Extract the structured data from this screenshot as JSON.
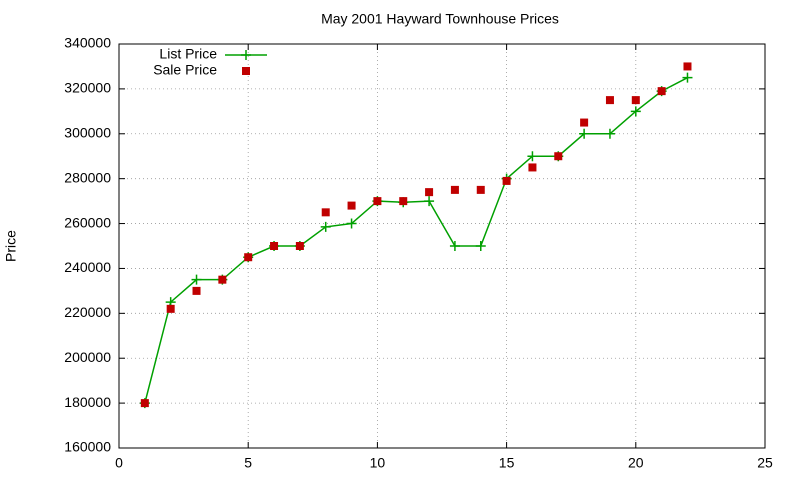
{
  "chart_data": {
    "type": "line",
    "title": "May 2001 Hayward Townhouse Prices",
    "y_label": "Price",
    "x": [
      1,
      2,
      3,
      4,
      5,
      6,
      7,
      8,
      9,
      10,
      11,
      12,
      13,
      14,
      15,
      16,
      17,
      18,
      19,
      20,
      21,
      22
    ],
    "series": [
      {
        "name": "List Price",
        "type": "line",
        "color": "#00a000",
        "values": [
          180000,
          225000,
          235000,
          235000,
          245000,
          250000,
          250000,
          258500,
          260000,
          270000,
          269500,
          270000,
          250000,
          250000,
          280000,
          290000,
          290000,
          300000,
          300000,
          310000,
          319000,
          325000
        ]
      },
      {
        "name": "Sale Price",
        "type": "scatter",
        "color": "#c00000",
        "values": [
          180000,
          222000,
          230000,
          235000,
          245000,
          250000,
          250000,
          265000,
          268000,
          270000,
          270000,
          274000,
          275000,
          275000,
          279000,
          285000,
          290000,
          305000,
          315000,
          315000,
          319000,
          330000
        ]
      }
    ],
    "xlim": [
      0,
      25
    ],
    "xticks": [
      0,
      5,
      10,
      15,
      20,
      25
    ],
    "ylim": [
      160000,
      340000
    ],
    "yticks": [
      160000,
      180000,
      200000,
      220000,
      240000,
      260000,
      280000,
      300000,
      320000,
      340000
    ],
    "grid": true,
    "legend": "top-left"
  }
}
